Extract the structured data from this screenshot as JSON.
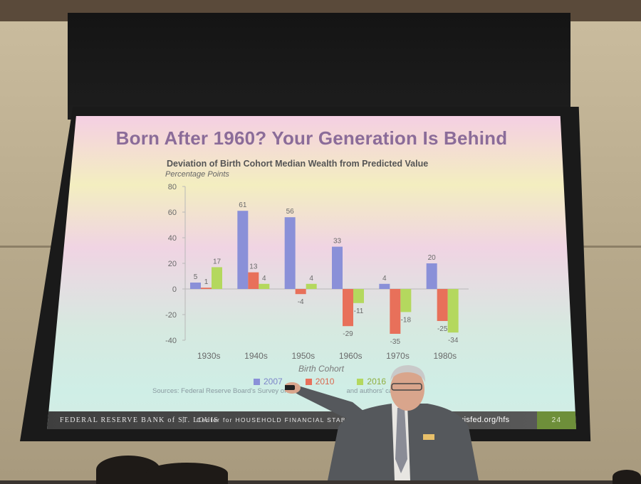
{
  "slide": {
    "title": "Born After 1960? Your Generation Is Behind",
    "sources_prefix": "Sources: Federal Reserve Board's Survey of Co",
    "sources_suffix": "and authors' calculations."
  },
  "footer": {
    "org": "FEDERAL RESERVE BANK of ST. LOUIS",
    "separator": "|",
    "center": "Center for HOUSEHOLD FINANCIAL STABILIT",
    "url": "louisfed.org/hfs",
    "page": "24"
  },
  "chart_data": {
    "type": "bar",
    "title": "Deviation of Birth Cohort Median Wealth from Predicted Value",
    "subtitle": "Percentage Points",
    "xlabel": "Birth Cohort",
    "ylabel": "",
    "ylim": [
      -40,
      80
    ],
    "yticks": [
      80,
      60,
      40,
      20,
      0,
      -20,
      -40
    ],
    "categories": [
      "1930s",
      "1940s",
      "1950s",
      "1960s",
      "1970s",
      "1980s"
    ],
    "series": [
      {
        "name": "2007",
        "color": "#8a90d8",
        "values": [
          5,
          61,
          56,
          33,
          4,
          20
        ]
      },
      {
        "name": "2010",
        "color": "#e8705a",
        "values": [
          1,
          13,
          -4,
          -29,
          -35,
          -25
        ]
      },
      {
        "name": "2016",
        "color": "#b4d85e",
        "values": [
          17,
          4,
          4,
          -11,
          -18,
          -34
        ]
      }
    ],
    "grid": false,
    "legend": "bottom"
  }
}
